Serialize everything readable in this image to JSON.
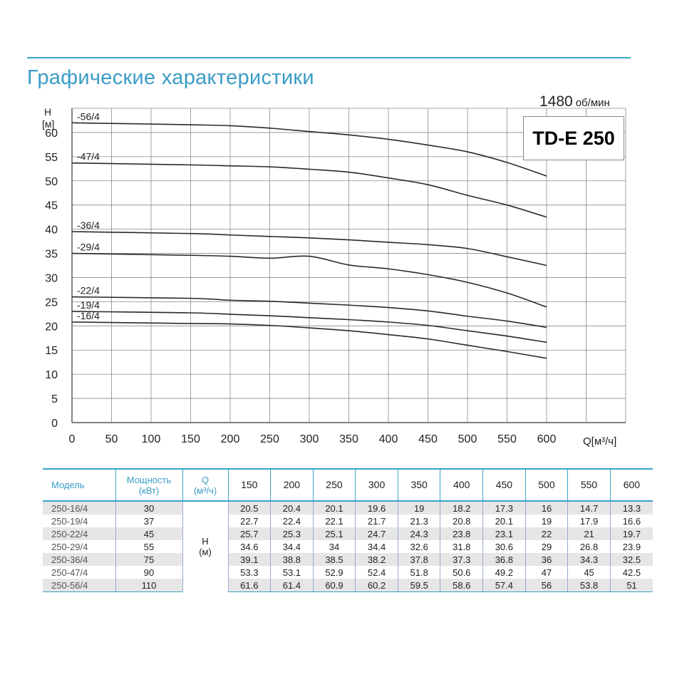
{
  "header": {
    "title": "Графические характеристики",
    "rpm_value": "1480",
    "rpm_unit": "об/мин",
    "model": "TD-E 250"
  },
  "chart_data": {
    "type": "line",
    "y_axis_label_top": "H",
    "y_axis_label_unit": "[м]",
    "x_axis_label": "Q[м³/ч]",
    "xlim": [
      0,
      700
    ],
    "ylim": [
      0,
      65
    ],
    "x_ticks": [
      0,
      50,
      100,
      150,
      200,
      250,
      300,
      350,
      400,
      450,
      500,
      550,
      600
    ],
    "y_ticks": [
      0,
      5,
      10,
      15,
      20,
      25,
      30,
      35,
      40,
      45,
      50,
      55,
      60
    ],
    "grid": true,
    "x": [
      0,
      150,
      200,
      250,
      300,
      350,
      400,
      450,
      500,
      550,
      600
    ],
    "series": [
      {
        "name": "-56/4",
        "values": [
          62.0,
          61.6,
          61.4,
          60.9,
          60.2,
          59.5,
          58.6,
          57.4,
          56.0,
          53.8,
          51.0
        ]
      },
      {
        "name": "-47/4",
        "values": [
          53.7,
          53.3,
          53.1,
          52.9,
          52.4,
          51.8,
          50.6,
          49.2,
          47.0,
          45.0,
          42.5
        ]
      },
      {
        "name": "-36/4",
        "values": [
          39.5,
          39.1,
          38.8,
          38.5,
          38.2,
          37.8,
          37.3,
          36.8,
          36.0,
          34.3,
          32.5
        ]
      },
      {
        "name": "-29/4",
        "values": [
          35.0,
          34.6,
          34.4,
          34.0,
          34.4,
          32.6,
          31.8,
          30.6,
          29.0,
          26.8,
          23.9
        ]
      },
      {
        "name": "-22/4",
        "values": [
          26.0,
          25.7,
          25.3,
          25.1,
          24.7,
          24.3,
          23.8,
          23.1,
          22.0,
          21.0,
          19.7
        ]
      },
      {
        "name": "-19/4",
        "values": [
          23.0,
          22.7,
          22.4,
          22.1,
          21.7,
          21.3,
          20.8,
          20.1,
          19.0,
          17.9,
          16.6
        ]
      },
      {
        "name": "-16/4",
        "values": [
          20.8,
          20.5,
          20.4,
          20.1,
          19.6,
          19.0,
          18.2,
          17.3,
          16.0,
          14.7,
          13.3
        ]
      }
    ]
  },
  "table": {
    "headers": {
      "model": "Модель",
      "power_l1": "Мощность",
      "power_l2": "(кВт)",
      "q_l1": "Q",
      "q_l2": "(м³/ч)"
    },
    "flows": [
      "150",
      "200",
      "250",
      "300",
      "350",
      "400",
      "450",
      "500",
      "550",
      "600"
    ],
    "h_label_l1": "H",
    "h_label_l2": "(м)",
    "rows": [
      {
        "model": "250-16/4",
        "power": "30",
        "heads": [
          "20.5",
          "20.4",
          "20.1",
          "19.6",
          "19",
          "18.2",
          "17.3",
          "16",
          "14.7",
          "13.3"
        ]
      },
      {
        "model": "250-19/4",
        "power": "37",
        "heads": [
          "22.7",
          "22.4",
          "22.1",
          "21.7",
          "21.3",
          "20.8",
          "20.1",
          "19",
          "17.9",
          "16.6"
        ]
      },
      {
        "model": "250-22/4",
        "power": "45",
        "heads": [
          "25.7",
          "25.3",
          "25.1",
          "24.7",
          "24.3",
          "23.8",
          "23.1",
          "22",
          "21",
          "19.7"
        ]
      },
      {
        "model": "250-29/4",
        "power": "55",
        "heads": [
          "34.6",
          "34.4",
          "34",
          "34.4",
          "32.6",
          "31.8",
          "30.6",
          "29",
          "26.8",
          "23.9"
        ]
      },
      {
        "model": "250-36/4",
        "power": "75",
        "heads": [
          "39.1",
          "38.8",
          "38.5",
          "38.2",
          "37.8",
          "37.3",
          "36.8",
          "36",
          "34.3",
          "32.5"
        ]
      },
      {
        "model": "250-47/4",
        "power": "90",
        "heads": [
          "53.3",
          "53.1",
          "52.9",
          "52.4",
          "51.8",
          "50.6",
          "49.2",
          "47",
          "45",
          "42.5"
        ]
      },
      {
        "model": "250-56/4",
        "power": "110",
        "heads": [
          "61.6",
          "61.4",
          "60.9",
          "60.2",
          "59.5",
          "58.6",
          "57.4",
          "56",
          "53.8",
          "51"
        ]
      }
    ]
  }
}
